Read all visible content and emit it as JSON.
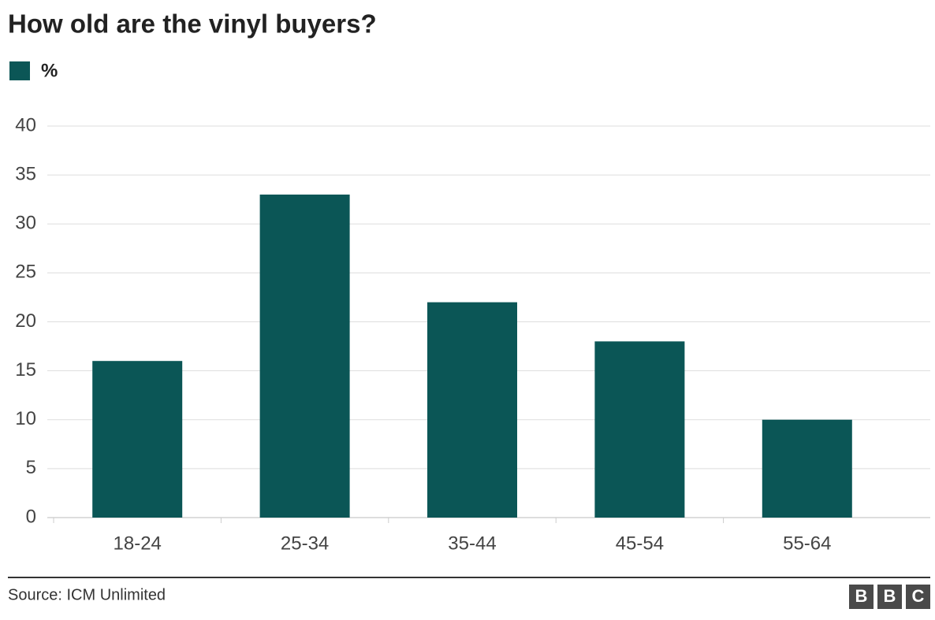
{
  "chart_data": {
    "type": "bar",
    "title": "How old are the vinyl buyers?",
    "categories": [
      "18-24",
      "25-34",
      "35-44",
      "45-54",
      "55-64"
    ],
    "series": [
      {
        "name": "%",
        "color": "#0b5656",
        "values": [
          16,
          33,
          22,
          18,
          10
        ]
      }
    ],
    "ylim": [
      0,
      40
    ],
    "yticks": [
      0,
      5,
      10,
      15,
      20,
      25,
      30,
      35,
      40
    ],
    "grid": true,
    "source": "Source: ICM Unlimited",
    "logo": [
      "B",
      "B",
      "C"
    ]
  }
}
